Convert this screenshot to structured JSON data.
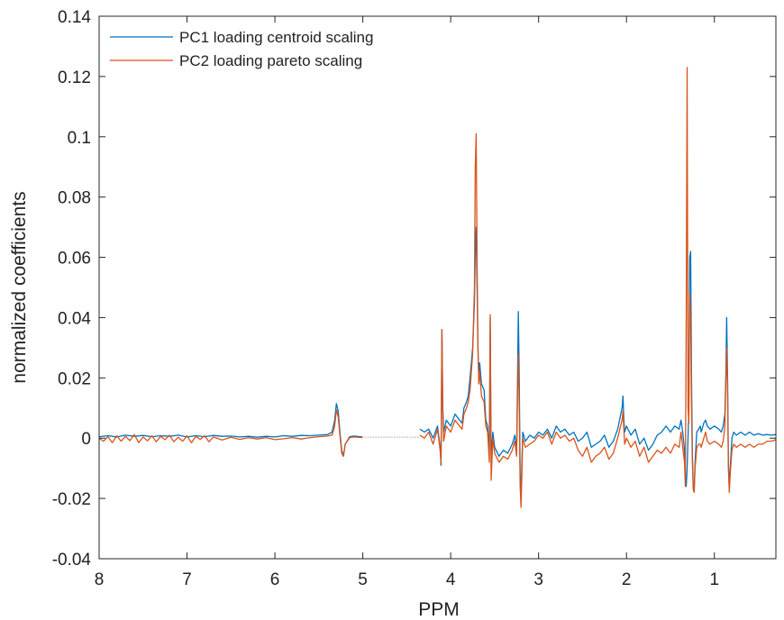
{
  "chart_data": {
    "type": "line",
    "xlabel": "PPM",
    "ylabel": "normalized coefficients",
    "xlim": [
      8,
      0.3
    ],
    "x_reversed": true,
    "ylim": [
      -0.04,
      0.14
    ],
    "xticks": [
      8,
      7,
      6,
      5,
      4,
      3,
      2,
      1,
      0
    ],
    "xtick_labels": [
      "8",
      "7",
      "6",
      "5",
      "4",
      "3",
      "2",
      "1",
      "0"
    ],
    "yticks": [
      -0.04,
      -0.02,
      0,
      0.02,
      0.04,
      0.06,
      0.08,
      0.1,
      0.12,
      0.14
    ],
    "ytick_labels": [
      "-0.04",
      "-0.02",
      "0",
      "0.02",
      "0.04",
      "0.06",
      "0.08",
      "0.1",
      "0.12",
      "0.14"
    ],
    "grid": false,
    "legend_position": "top-left",
    "colors": {
      "PC1": "#0072BD",
      "PC2": "#D95319",
      "gap_dots": "#c8c8c8",
      "axes": "#262626"
    },
    "series": [
      {
        "name": "PC1 loading centroid scaling",
        "color": "#0072BD",
        "segments": [
          {
            "x": [
              8.0,
              7.9,
              7.8,
              7.7,
              7.6,
              7.5,
              7.4,
              7.3,
              7.2,
              7.1,
              7.0,
              6.9,
              6.8,
              6.7,
              6.6,
              6.5,
              6.4,
              6.3,
              6.2,
              6.1,
              6.0,
              5.9,
              5.8,
              5.7,
              5.6,
              5.5,
              5.4,
              5.35,
              5.32,
              5.3,
              5.28,
              5.26,
              5.24,
              5.22,
              5.2,
              5.15,
              5.1,
              5.0
            ],
            "y": [
              0.0005,
              0.0008,
              0.0004,
              0.001,
              0.0006,
              0.0009,
              0.0005,
              0.0008,
              0.0006,
              0.001,
              0.0004,
              0.0008,
              0.0005,
              0.0009,
              0.0006,
              0.0007,
              0.0004,
              0.0006,
              0.0003,
              0.0006,
              0.0004,
              0.0008,
              0.0006,
              0.0009,
              0.0008,
              0.001,
              0.0012,
              0.002,
              0.006,
              0.0115,
              0.009,
              0.002,
              -0.004,
              -0.006,
              -0.002,
              0.0005,
              0.0007,
              0.0004
            ]
          },
          {
            "x": [
              4.35,
              4.3,
              4.25,
              4.2,
              4.15,
              4.12,
              4.11,
              4.1,
              4.09,
              4.08,
              4.05,
              4.0,
              3.95,
              3.9,
              3.87,
              3.85,
              3.82,
              3.8,
              3.78,
              3.75,
              3.73,
              3.72,
              3.71,
              3.7,
              3.69,
              3.68,
              3.67,
              3.65,
              3.62,
              3.6,
              3.58,
              3.56,
              3.55,
              3.54,
              3.52,
              3.5,
              3.45,
              3.4,
              3.35,
              3.3,
              3.27,
              3.25,
              3.24,
              3.23,
              3.22,
              3.21,
              3.2,
              3.18,
              3.15,
              3.1,
              3.05,
              3.0,
              2.95,
              2.9,
              2.85,
              2.8,
              2.75,
              2.7,
              2.65,
              2.6,
              2.55,
              2.5,
              2.45,
              2.4,
              2.35,
              2.3,
              2.25,
              2.2,
              2.15,
              2.1,
              2.05,
              2.04,
              2.03,
              2.02,
              2.0,
              1.95,
              1.9,
              1.85,
              1.8,
              1.75,
              1.7,
              1.65,
              1.6,
              1.55,
              1.5,
              1.45,
              1.4,
              1.38,
              1.36,
              1.34,
              1.33,
              1.32,
              1.31,
              1.3,
              1.29,
              1.28,
              1.27,
              1.26,
              1.25,
              1.24,
              1.23,
              1.22,
              1.2,
              1.18,
              1.16,
              1.15,
              1.12,
              1.1,
              1.08,
              1.05,
              1.0,
              0.95,
              0.92,
              0.9,
              0.88,
              0.87,
              0.86,
              0.85,
              0.84,
              0.83,
              0.82,
              0.8,
              0.78,
              0.75,
              0.7,
              0.65,
              0.6,
              0.55,
              0.5,
              0.45,
              0.4,
              0.35,
              0.3
            ],
            "y": [
              0.003,
              0.002,
              0.003,
              0.0,
              0.004,
              -0.003,
              -0.009,
              0.036,
              0.01,
              0.002,
              0.006,
              0.004,
              0.008,
              0.006,
              0.005,
              0.01,
              0.012,
              0.014,
              0.02,
              0.03,
              0.045,
              0.062,
              0.07,
              0.05,
              0.03,
              0.02,
              0.025,
              0.018,
              0.016,
              0.006,
              0.004,
              -0.004,
              0.04,
              -0.006,
              0.002,
              -0.003,
              -0.006,
              -0.004,
              -0.005,
              -0.002,
              0.001,
              -0.004,
              0.02,
              0.042,
              0.02,
              -0.012,
              -0.018,
              0.002,
              -0.001,
              0.001,
              0.0,
              0.002,
              0.001,
              0.003,
              0.0,
              0.004,
              0.002,
              0.003,
              0.001,
              0.002,
              -0.001,
              0.0,
              0.002,
              -0.003,
              -0.002,
              -0.001,
              0.001,
              -0.003,
              -0.001,
              0.003,
              0.01,
              0.014,
              0.006,
              0.002,
              0.004,
              0.001,
              0.003,
              -0.002,
              0.0,
              -0.004,
              -0.002,
              0.001,
              0.002,
              0.004,
              0.002,
              0.004,
              0.003,
              0.006,
              0.002,
              -0.004,
              -0.012,
              -0.016,
              -0.01,
              0.0,
              0.01,
              0.06,
              0.062,
              0.02,
              -0.005,
              -0.016,
              -0.018,
              -0.008,
              0.002,
              0.003,
              0.004,
              0.002,
              0.005,
              0.006,
              0.004,
              0.003,
              0.004,
              0.003,
              0.002,
              0.004,
              0.008,
              0.02,
              0.04,
              0.02,
              -0.008,
              -0.017,
              -0.01,
              0.0,
              0.002,
              0.001,
              0.002,
              0.001,
              0.002,
              0.001,
              0.0015,
              0.001,
              0.0012,
              0.001,
              0.0012
            ]
          }
        ]
      },
      {
        "name": "PC2 loading pareto scaling",
        "color": "#D95319",
        "segments": [
          {
            "x": [
              8.0,
              7.95,
              7.9,
              7.85,
              7.8,
              7.75,
              7.7,
              7.65,
              7.6,
              7.55,
              7.5,
              7.45,
              7.4,
              7.35,
              7.3,
              7.25,
              7.2,
              7.15,
              7.1,
              7.05,
              7.0,
              6.95,
              6.9,
              6.85,
              6.8,
              6.75,
              6.7,
              6.6,
              6.5,
              6.4,
              6.3,
              6.2,
              6.1,
              6.0,
              5.9,
              5.8,
              5.7,
              5.6,
              5.5,
              5.4,
              5.35,
              5.32,
              5.3,
              5.28,
              5.26,
              5.24,
              5.22,
              5.2,
              5.15,
              5.1,
              5.0
            ],
            "y": [
              0.0,
              -0.001,
              0.0005,
              -0.0015,
              0.0008,
              -0.001,
              0.0006,
              -0.0008,
              0.0012,
              -0.0015,
              0.0004,
              -0.0009,
              0.0008,
              -0.0012,
              0.0006,
              -0.0005,
              0.001,
              -0.0012,
              0.0003,
              -0.001,
              0.0008,
              -0.0015,
              0.0006,
              -0.0004,
              0.0008,
              -0.0012,
              0.0004,
              -0.0006,
              0.0003,
              -0.0004,
              0.0002,
              -0.0003,
              0.0002,
              -0.0005,
              -0.0002,
              0.0002,
              -0.0003,
              0.0002,
              0.0005,
              0.0007,
              0.001,
              0.004,
              0.0095,
              0.007,
              0.001,
              -0.005,
              -0.006,
              -0.002,
              0.0002,
              0.0004,
              0.0002
            ]
          },
          {
            "x": [
              4.35,
              4.3,
              4.25,
              4.2,
              4.15,
              4.12,
              4.11,
              4.1,
              4.09,
              4.08,
              4.05,
              4.0,
              3.95,
              3.9,
              3.87,
              3.85,
              3.82,
              3.8,
              3.78,
              3.75,
              3.73,
              3.72,
              3.71,
              3.7,
              3.69,
              3.68,
              3.67,
              3.65,
              3.62,
              3.6,
              3.58,
              3.56,
              3.55,
              3.54,
              3.52,
              3.5,
              3.45,
              3.4,
              3.35,
              3.3,
              3.27,
              3.25,
              3.24,
              3.23,
              3.22,
              3.21,
              3.2,
              3.18,
              3.15,
              3.1,
              3.05,
              3.0,
              2.95,
              2.9,
              2.85,
              2.8,
              2.75,
              2.7,
              2.65,
              2.6,
              2.55,
              2.5,
              2.45,
              2.4,
              2.35,
              2.3,
              2.25,
              2.2,
              2.15,
              2.1,
              2.05,
              2.04,
              2.03,
              2.02,
              2.0,
              1.95,
              1.9,
              1.85,
              1.8,
              1.75,
              1.7,
              1.65,
              1.6,
              1.55,
              1.5,
              1.45,
              1.4,
              1.38,
              1.36,
              1.34,
              1.33,
              1.32,
              1.31,
              1.3,
              1.29,
              1.28,
              1.27,
              1.26,
              1.25,
              1.24,
              1.23,
              1.22,
              1.2,
              1.18,
              1.16,
              1.15,
              1.12,
              1.1,
              1.08,
              1.05,
              1.0,
              0.95,
              0.92,
              0.9,
              0.88,
              0.87,
              0.86,
              0.85,
              0.84,
              0.83,
              0.82,
              0.8,
              0.78,
              0.75,
              0.7,
              0.65,
              0.6,
              0.55,
              0.5,
              0.45,
              0.4,
              0.35,
              0.3
            ],
            "y": [
              0.001,
              0.0,
              0.002,
              -0.002,
              0.003,
              -0.004,
              -0.008,
              0.036,
              0.008,
              -0.001,
              0.004,
              0.002,
              0.006,
              0.004,
              0.003,
              0.008,
              0.01,
              0.012,
              0.016,
              0.028,
              0.05,
              0.09,
              0.101,
              0.06,
              0.03,
              0.018,
              0.022,
              0.014,
              0.012,
              0.004,
              0.002,
              -0.008,
              0.041,
              -0.014,
              0.0,
              -0.005,
              -0.008,
              -0.006,
              -0.007,
              -0.004,
              -0.001,
              -0.006,
              0.015,
              0.028,
              0.01,
              -0.016,
              -0.023,
              0.0,
              -0.003,
              -0.002,
              -0.001,
              0.001,
              0.0,
              0.002,
              -0.002,
              0.002,
              0.0,
              0.001,
              -0.001,
              0.0,
              -0.004,
              -0.006,
              -0.003,
              -0.008,
              -0.006,
              -0.005,
              -0.003,
              -0.007,
              -0.005,
              0.0,
              0.006,
              0.009,
              0.003,
              -0.002,
              0.0,
              -0.003,
              -0.001,
              -0.006,
              -0.003,
              -0.008,
              -0.006,
              -0.004,
              -0.005,
              -0.003,
              -0.005,
              -0.002,
              -0.003,
              0.002,
              -0.003,
              -0.008,
              -0.016,
              0.04,
              0.123,
              0.01,
              0.005,
              0.048,
              0.04,
              0.01,
              -0.008,
              -0.017,
              -0.018,
              -0.01,
              -0.003,
              -0.002,
              -0.002,
              -0.003,
              0.0,
              0.002,
              -0.001,
              -0.002,
              -0.001,
              -0.002,
              -0.003,
              -0.001,
              0.004,
              0.018,
              0.03,
              0.015,
              -0.01,
              -0.018,
              -0.012,
              -0.004,
              -0.002,
              -0.003,
              -0.002,
              -0.003,
              -0.002,
              -0.003,
              -0.002,
              -0.002,
              -0.001,
              -0.001,
              -0.0005
            ]
          }
        ]
      }
    ]
  }
}
